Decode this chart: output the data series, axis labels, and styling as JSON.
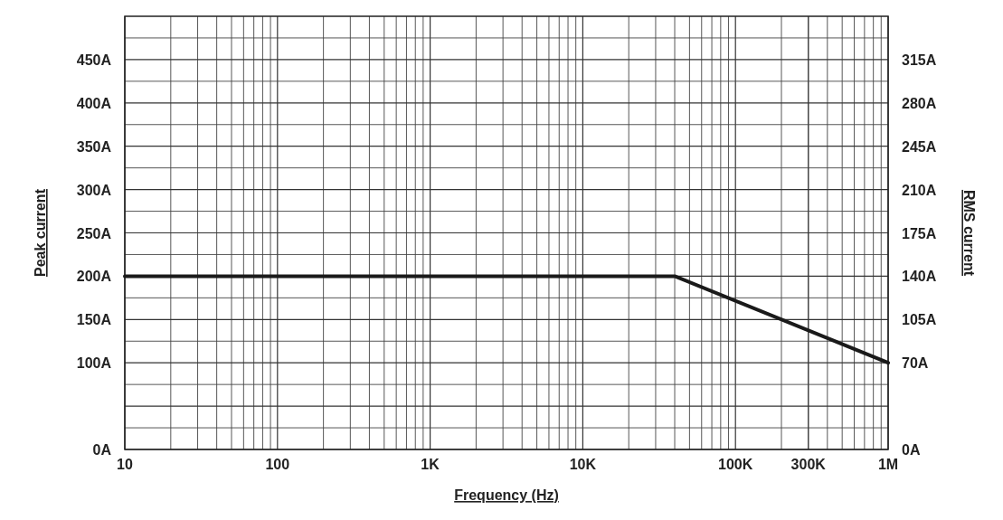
{
  "chart_data": {
    "type": "line",
    "xlabel": "Frequency (Hz)",
    "ylabel": "Peak current",
    "y2label": "RMS current",
    "log": "x",
    "x": [
      10,
      40000,
      1000000
    ],
    "series": [
      {
        "color": "#1a1a1a",
        "values": [
          200,
          200,
          100
        ]
      }
    ],
    "xlim": [
      10,
      1000000
    ],
    "xticks": [
      {
        "value": 10,
        "label": "10"
      },
      {
        "value": 100,
        "label": "100"
      },
      {
        "value": 1000,
        "label": "1K"
      },
      {
        "value": 10000,
        "label": "10K"
      },
      {
        "value": 100000,
        "label": "100K"
      },
      {
        "value": 300000,
        "label": "300K"
      },
      {
        "value": 1000000,
        "label": "1M"
      }
    ],
    "ylim": [
      0,
      500
    ],
    "yticks": [
      {
        "value": 0,
        "label": "0A"
      },
      {
        "value": 50,
        "label": null
      },
      {
        "value": 100,
        "label": "100A"
      },
      {
        "value": 150,
        "label": "150A"
      },
      {
        "value": 200,
        "label": "200A"
      },
      {
        "value": 250,
        "label": "250A"
      },
      {
        "value": 300,
        "label": "300A"
      },
      {
        "value": 350,
        "label": "350A"
      },
      {
        "value": 400,
        "label": "400A"
      },
      {
        "value": 450,
        "label": "450A"
      }
    ],
    "y2lim": [
      0,
      350
    ],
    "y2ticks": [
      {
        "value": 0,
        "label": "0A"
      },
      {
        "value": 70,
        "label": "70A"
      },
      {
        "value": 105,
        "label": "105A"
      },
      {
        "value": 140,
        "label": "140A"
      },
      {
        "value": 175,
        "label": "175A"
      },
      {
        "value": 210,
        "label": "210A"
      },
      {
        "value": 245,
        "label": "245A"
      },
      {
        "value": 280,
        "label": "280A"
      },
      {
        "value": 315,
        "label": "315A"
      }
    ],
    "grid": true,
    "line_style": "solid",
    "marker": "none"
  }
}
